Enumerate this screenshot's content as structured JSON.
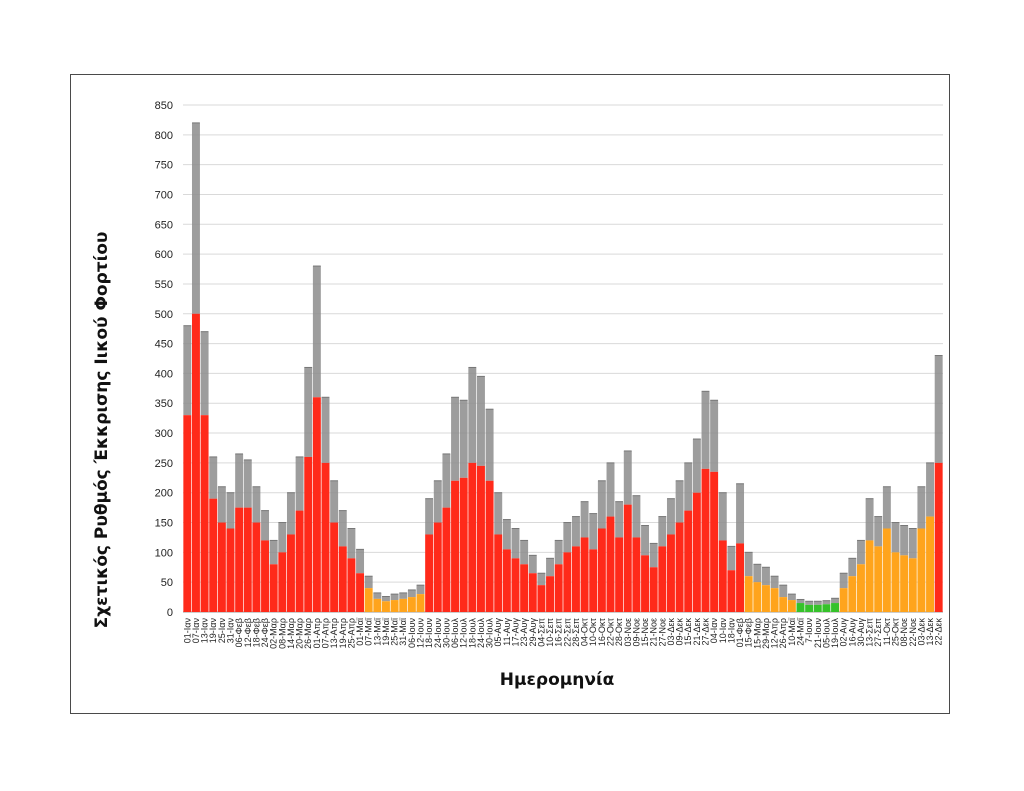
{
  "chart_data": {
    "type": "bar",
    "title": "",
    "xlabel": "Ημερομηνία",
    "ylabel": "Σχετικός Ρυθμός Έκκρισης Ιικού Φορτίου",
    "ylim": [
      0,
      850
    ],
    "y_ticks": [
      0,
      50,
      100,
      150,
      200,
      250,
      300,
      350,
      400,
      450,
      500,
      550,
      600,
      650,
      700,
      750,
      800,
      850
    ],
    "grid": "horizontal",
    "error_bars": true,
    "colors": {
      "high": "#ff2a1a",
      "medium": "#ffa41c",
      "low": "#35c22a",
      "error_bar": "#8c8c8c",
      "grid": "#d9d9d9"
    },
    "categories": [
      "01-Ιαν",
      "07-Ιαν",
      "13-Ιαν",
      "19-Ιαν",
      "25-Ιαν",
      "31-Ιαν",
      "06-Φεβ",
      "12-Φεβ",
      "18-Φεβ",
      "24-Φεβ",
      "02-Μαρ",
      "08-Μαρ",
      "14-Μαρ",
      "20-Μαρ",
      "26-Μαρ",
      "01-Απρ",
      "07-Απρ",
      "13-Απρ",
      "19-Απρ",
      "25-Απρ",
      "01-Μαϊ",
      "07-Μαϊ",
      "13-Μαϊ",
      "19-Μαϊ",
      "25-Μαϊ",
      "31-Μαϊ",
      "06-Ιουν",
      "12-Ιουν",
      "18-Ιουν",
      "24-Ιουν",
      "30-Ιουν",
      "06-Ιουλ",
      "12-Ιουλ",
      "18-Ιουλ",
      "24-Ιουλ",
      "30-Ιουλ",
      "05-Αυγ",
      "11-Αυγ",
      "17-Αυγ",
      "23-Αυγ",
      "29-Αυγ",
      "04-Σεπ",
      "10-Σεπ",
      "16-Σεπ",
      "22-Σεπ",
      "28-Σεπ",
      "04-Οκτ",
      "10-Οκτ",
      "16-Οκτ",
      "22-Οκτ",
      "28-Οκτ",
      "03-Νοε",
      "09-Νοε",
      "15-Νοε",
      "21-Νοε",
      "27-Νοε",
      "03-Δεκ",
      "09-Δεκ",
      "15-Δεκ",
      "21-Δεκ",
      "27-Δεκ",
      "04-Ιαν",
      "10-Ιαν",
      "18-Ιαν",
      "01-Φεβ",
      "15-Φεβ",
      "15-Μαρ",
      "29-Μαρ",
      "12-Απρ",
      "26-Απρ",
      "10-Μαϊ",
      "24-Μαϊ",
      "7-Ιουν",
      "21-Ιουν",
      "05-Ιουλ",
      "19-Ιουλ",
      "02-Αυγ",
      "16-Αυγ",
      "30-Αυγ",
      "13-Σεπ",
      "27-Σεπ",
      "11-Οκτ",
      "25-Οκτ",
      "08-Νοε",
      "22-Νοε",
      "03-Δεκ",
      "13-Δεκ",
      "22-Δεκ"
    ],
    "values": [
      330,
      500,
      330,
      190,
      150,
      140,
      175,
      175,
      150,
      120,
      80,
      100,
      130,
      170,
      260,
      360,
      250,
      150,
      110,
      90,
      65,
      40,
      22,
      18,
      20,
      22,
      25,
      30,
      130,
      150,
      175,
      220,
      225,
      250,
      245,
      220,
      130,
      105,
      90,
      80,
      65,
      45,
      60,
      80,
      100,
      110,
      125,
      105,
      140,
      160,
      125,
      180,
      125,
      95,
      75,
      110,
      130,
      150,
      170,
      200,
      240,
      235,
      120,
      70,
      115,
      60,
      50,
      45,
      40,
      25,
      20,
      15,
      12,
      12,
      13,
      15,
      40,
      60,
      80,
      120,
      110,
      140,
      100,
      95,
      90,
      140,
      160,
      250
    ],
    "errors": [
      150,
      320,
      140,
      70,
      60,
      60,
      90,
      80,
      60,
      50,
      40,
      50,
      70,
      90,
      150,
      220,
      110,
      70,
      60,
      50,
      40,
      20,
      10,
      8,
      10,
      10,
      12,
      15,
      60,
      70,
      90,
      140,
      130,
      160,
      150,
      120,
      70,
      50,
      50,
      40,
      30,
      20,
      30,
      40,
      50,
      50,
      60,
      60,
      80,
      90,
      60,
      90,
      70,
      50,
      40,
      50,
      60,
      70,
      80,
      90,
      130,
      120,
      80,
      40,
      100,
      40,
      30,
      30,
      20,
      20,
      10,
      6,
      6,
      6,
      6,
      8,
      25,
      30,
      40,
      70,
      50,
      70,
      50,
      50,
      50,
      70,
      90,
      180
    ],
    "level": [
      "high",
      "high",
      "high",
      "high",
      "high",
      "high",
      "high",
      "high",
      "high",
      "high",
      "high",
      "high",
      "high",
      "high",
      "high",
      "high",
      "high",
      "high",
      "high",
      "high",
      "high",
      "medium",
      "medium",
      "medium",
      "medium",
      "medium",
      "medium",
      "medium",
      "high",
      "high",
      "high",
      "high",
      "high",
      "high",
      "high",
      "high",
      "high",
      "high",
      "high",
      "high",
      "high",
      "high",
      "high",
      "high",
      "high",
      "high",
      "high",
      "high",
      "high",
      "high",
      "high",
      "high",
      "high",
      "high",
      "high",
      "high",
      "high",
      "high",
      "high",
      "high",
      "high",
      "high",
      "high",
      "high",
      "high",
      "medium",
      "medium",
      "medium",
      "medium",
      "medium",
      "medium",
      "low",
      "low",
      "low",
      "low",
      "low",
      "medium",
      "medium",
      "medium",
      "medium",
      "medium",
      "medium",
      "medium",
      "medium",
      "medium",
      "medium",
      "medium",
      "high"
    ]
  }
}
